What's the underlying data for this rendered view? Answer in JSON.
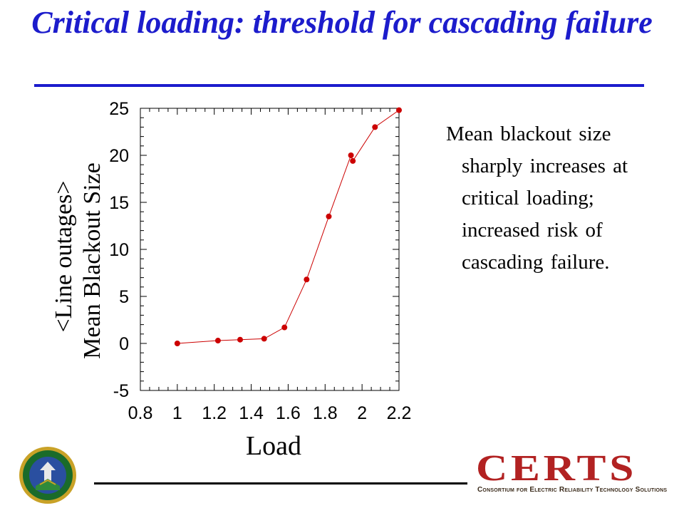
{
  "slide": {
    "title": "Critical loading: threshold for cascading failure",
    "description": "Mean blackout size sharply increases at critical loading; increased risk of cascading failure."
  },
  "logos": {
    "certs_word": "CERTS",
    "certs_tagline": "Consortium for Electric Reliability Technology Solutions",
    "seal_icon": "doe-seal-icon"
  },
  "colors": {
    "title": "#1c1ccc",
    "series": "#cc0000",
    "certs": "#b22222"
  },
  "chart_data": {
    "type": "line",
    "title": "",
    "xlabel": "Load",
    "ylabel_line1": "<Line outages>",
    "ylabel_line2": "Mean Blackout Size",
    "xlim": [
      0.8,
      2.2
    ],
    "ylim": [
      -5,
      25
    ],
    "xticks": [
      "0.8",
      "1",
      "1.2",
      "1.4",
      "1.6",
      "1.8",
      "2",
      "2.2"
    ],
    "yticks": [
      "-5",
      "0",
      "5",
      "10",
      "15",
      "20",
      "25"
    ],
    "grid": false,
    "series": [
      {
        "x": [
          1.0,
          1.22,
          1.34,
          1.47,
          1.58,
          1.7,
          1.82,
          1.94,
          1.95,
          2.07,
          2.2
        ],
        "y": [
          0.0,
          0.3,
          0.4,
          0.5,
          1.7,
          6.8,
          13.5,
          20.0,
          19.4,
          23.0,
          24.8
        ]
      }
    ]
  }
}
